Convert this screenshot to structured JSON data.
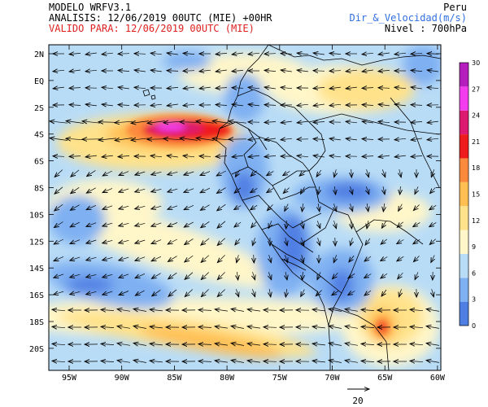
{
  "header": {
    "model": "MODELO WRFV3.1",
    "analysis": "ANALISIS: 12/06/2019 00UTC (MIE) +00HR",
    "valid": "VALIDO PARA: 12/06/2019 00UTC (MIE)",
    "region": "Peru",
    "variable": "Dir_&_Velocidad(m/s)",
    "level": "Nivel : 700hPa"
  },
  "axes": {
    "lat_labels": [
      "2N",
      "EQ",
      "2S",
      "4S",
      "6S",
      "8S",
      "10S",
      "12S",
      "14S",
      "16S",
      "18S",
      "20S"
    ],
    "lon_labels": [
      "95W",
      "90W",
      "85W",
      "80W",
      "75W",
      "70W",
      "65W",
      "60W"
    ]
  },
  "colorbar": {
    "ticks": [
      "0",
      "3",
      "6",
      "9",
      "12",
      "15",
      "18",
      "21",
      "24",
      "27",
      "30"
    ],
    "colors": [
      "#4f7fe3",
      "#7fb0f2",
      "#b9dcf6",
      "#fff6c9",
      "#ffe28a",
      "#ffbf52",
      "#fb8a3c",
      "#ee1c1c",
      "#dd1a70",
      "#f23ced",
      "#b51fbe"
    ]
  },
  "reference_vector": {
    "label": "20"
  }
}
